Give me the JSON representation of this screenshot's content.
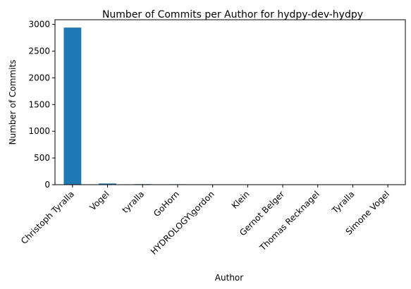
{
  "chart_data": {
    "type": "bar",
    "title": "Number of Commits per Author for hydpy-dev-hydpy",
    "xlabel": "Author",
    "ylabel": "Number of Commits",
    "categories": [
      "Christoph Tyralla",
      "Vogel",
      "tyralla",
      "GoHorn",
      "HYDROLOGY\\gordon",
      "Klein",
      "Gernot Belger",
      "Thomas Recknagel",
      "Tyralla",
      "Simone Vogel"
    ],
    "values": [
      2940,
      22,
      10,
      8,
      3,
      2,
      1,
      1,
      1,
      1
    ],
    "ylim": [
      0,
      3087
    ],
    "yticks": [
      0,
      500,
      1000,
      1500,
      2000,
      2500,
      3000
    ],
    "bar_color": "#1f77b4",
    "grid": false,
    "legend": "none"
  }
}
